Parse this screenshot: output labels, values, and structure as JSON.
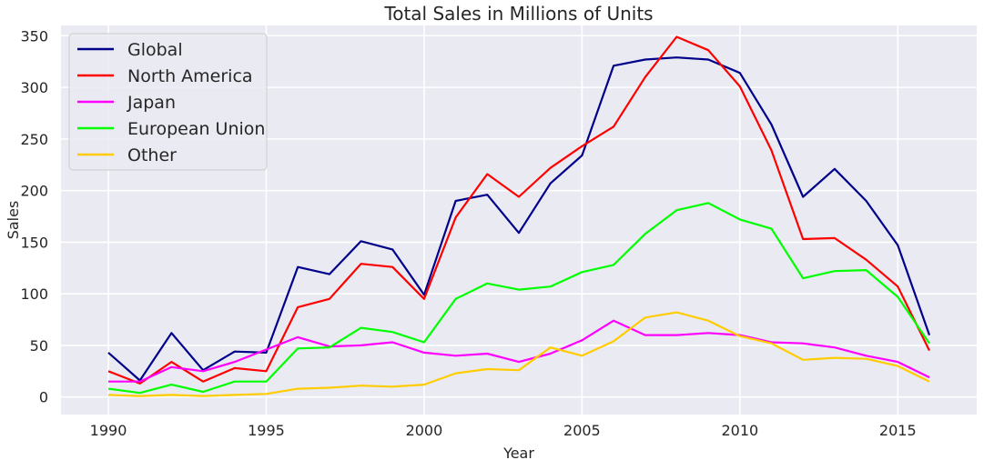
{
  "chart_data": {
    "type": "line",
    "title": "Total Sales in Millions of Units",
    "xlabel": "Year",
    "ylabel": "Sales",
    "xlim": [
      1988.5,
      2017.5
    ],
    "ylim": [
      -17,
      360
    ],
    "xticks": [
      1990,
      1995,
      2000,
      2005,
      2010,
      2015
    ],
    "yticks": [
      0,
      50,
      100,
      150,
      200,
      250,
      300,
      350
    ],
    "grid": true,
    "legend_position": "top-left",
    "x": [
      1990,
      1991,
      1992,
      1993,
      1994,
      1995,
      1996,
      1997,
      1998,
      1999,
      2000,
      2001,
      2002,
      2003,
      2004,
      2005,
      2006,
      2007,
      2008,
      2009,
      2010,
      2011,
      2012,
      2013,
      2014,
      2015,
      2016
    ],
    "series": [
      {
        "name": "Global",
        "color": "#00008b",
        "values": [
          43,
          16,
          62,
          26,
          44,
          43,
          126,
          119,
          151,
          143,
          99,
          190,
          196,
          159,
          207,
          234,
          321,
          327,
          329,
          327,
          314,
          264,
          194,
          221,
          190,
          147,
          60
        ]
      },
      {
        "name": "North America",
        "color": "#ff0000",
        "values": [
          25,
          13,
          34,
          15,
          28,
          25,
          87,
          95,
          129,
          126,
          95,
          174,
          216,
          194,
          222,
          243,
          262,
          310,
          349,
          336,
          301,
          239,
          153,
          154,
          133,
          107,
          45
        ]
      },
      {
        "name": "Japan",
        "color": "#ff00ff",
        "values": [
          15,
          15,
          29,
          25,
          34,
          46,
          58,
          49,
          50,
          53,
          43,
          40,
          42,
          34,
          42,
          55,
          74,
          60,
          60,
          62,
          60,
          53,
          52,
          48,
          40,
          34,
          19
        ]
      },
      {
        "name": "European Union",
        "color": "#00ff00",
        "values": [
          8,
          4,
          12,
          5,
          15,
          15,
          47,
          48,
          67,
          63,
          53,
          95,
          110,
          104,
          107,
          121,
          128,
          158,
          181,
          188,
          172,
          163,
          115,
          122,
          123,
          97,
          52
        ]
      },
      {
        "name": "Other",
        "color": "#ffcc00",
        "values": [
          2,
          1,
          2,
          1,
          2,
          3,
          8,
          9,
          11,
          10,
          12,
          23,
          27,
          26,
          48,
          40,
          54,
          77,
          82,
          74,
          59,
          52,
          36,
          38,
          37,
          30,
          15
        ]
      }
    ]
  },
  "style": {
    "plot_background": "#eaeaf2",
    "grid_color": "#ffffff",
    "legend_background": "#eaeaf2",
    "legend_border": "#cccccc"
  }
}
